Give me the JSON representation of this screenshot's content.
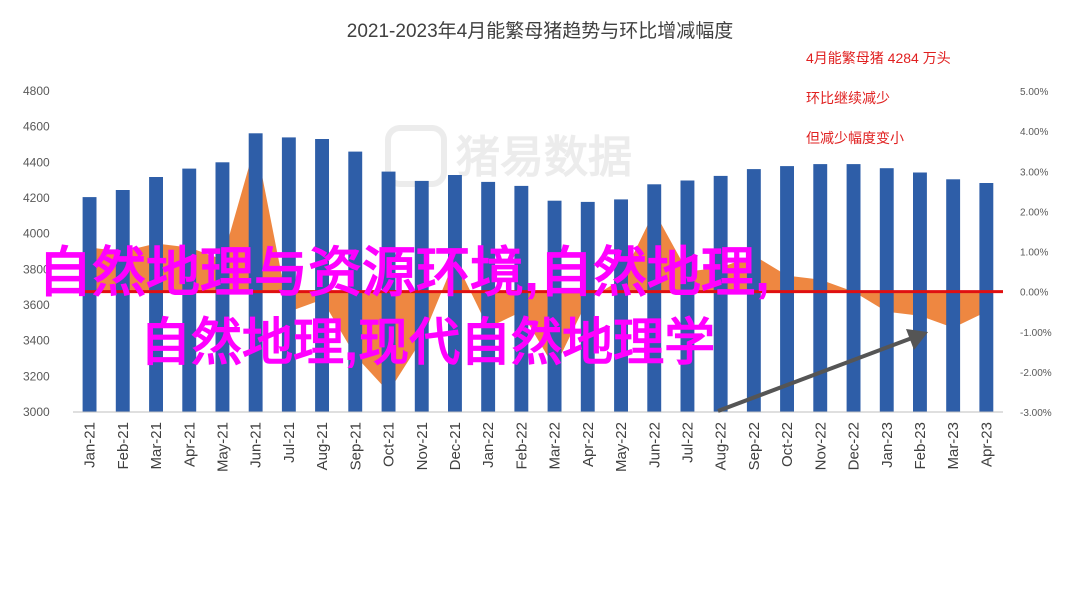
{
  "chart_data": {
    "type": "bar",
    "title": "2021-2023年4月能繁母猪趋势与环比增减幅度",
    "categories": [
      "Jan-21",
      "Feb-21",
      "Mar-21",
      "Apr-21",
      "May-21",
      "Jun-21",
      "Jul-21",
      "Aug-21",
      "Sep-21",
      "Oct-21",
      "Nov-21",
      "Dec-21",
      "Jan-22",
      "Feb-22",
      "Mar-22",
      "Apr-22",
      "May-22",
      "Jun-22",
      "Jul-22",
      "Aug-22",
      "Sep-22",
      "Oct-22",
      "Nov-22",
      "Dec-22",
      "Jan-23",
      "Feb-23",
      "Mar-23",
      "Apr-23"
    ],
    "series": [
      {
        "type": "bar",
        "axis": "left",
        "color": "#2e5ea8",
        "values": [
          4205,
          4245,
          4318,
          4365,
          4400,
          4563,
          4540,
          4531,
          4460,
          4348,
          4296,
          4329,
          4290,
          4268,
          4185,
          4178,
          4192,
          4277,
          4298,
          4324,
          4362,
          4379,
          4390,
          4390,
          4367,
          4343,
          4305,
          4284
        ]
      },
      {
        "type": "area",
        "axis": "right",
        "color": "#ed7d31",
        "values": [
          1.1,
          1.0,
          1.2,
          1.1,
          0.8,
          3.7,
          -0.5,
          -0.2,
          -1.6,
          -2.5,
          -1.2,
          0.8,
          -0.9,
          -0.5,
          -1.9,
          -0.2,
          0.3,
          2.0,
          0.5,
          0.6,
          0.9,
          0.4,
          0.3,
          0.0,
          -0.5,
          -0.6,
          -0.9,
          -0.5
        ]
      }
    ],
    "y_left": {
      "min": 3000,
      "max": 4800,
      "ticks": [
        3000,
        3200,
        3400,
        3600,
        3800,
        4000,
        4200,
        4400,
        4600,
        4800
      ]
    },
    "y_right": {
      "min": -3,
      "max": 5,
      "ticks": [
        "-3.00%",
        "-2.00%",
        "-1.00%",
        "0.00%",
        "1.00%",
        "2.00%",
        "3.00%",
        "4.00%",
        "5.00%"
      ]
    },
    "zero_line_color": "#e01010",
    "grid": false,
    "annotations": [
      "4月能繁母猪 4284 万头",
      "环比继续减少",
      "但减少幅度变小"
    ],
    "watermark": "猪易数据"
  },
  "overlay_text": {
    "line1": "自然地理与资源环境,自然地理,",
    "line2": "自然地理,现代自然地理学"
  }
}
